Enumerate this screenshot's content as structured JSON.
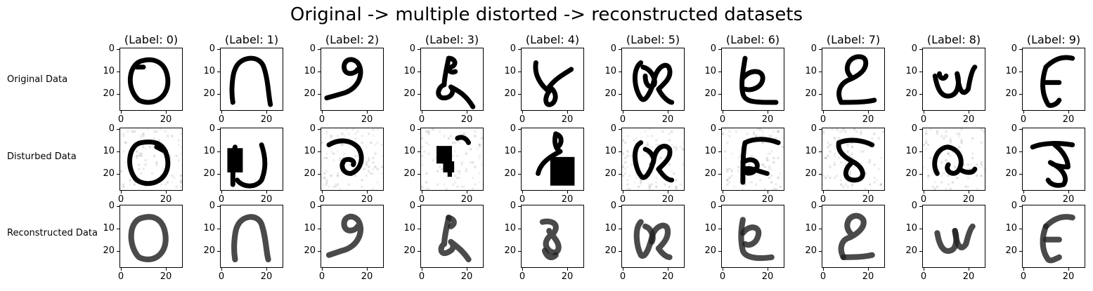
{
  "figure": {
    "title": "Original -> multiple distorted -> reconstructed datasets"
  },
  "row_labels": [
    "Original Data",
    "Disturbed Data",
    "Reconstructed Data"
  ],
  "column_titles": [
    "(Label: 0)",
    "(Label: 1)",
    "(Label: 2)",
    "(Label: 3)",
    "(Label: 4)",
    "(Label: 5)",
    "(Label: 6)",
    "(Label: 7)",
    "(Label: 8)",
    "(Label: 9)"
  ],
  "axes": {
    "yticks": [
      "0",
      "10",
      "20"
    ],
    "xticks": [
      "0",
      "20"
    ]
  },
  "chart_data": {
    "type": "heatmap",
    "title": "Original -> multiple distorted -> reconstructed datasets",
    "image_size": [
      28,
      28
    ],
    "colormap": "gray_r",
    "xlim": [
      -0.5,
      27.5
    ],
    "ylim": [
      27.5,
      -0.5
    ],
    "x_ticks": [
      0,
      20
    ],
    "y_ticks": [
      0,
      10,
      20
    ],
    "rows": [
      "Original Data",
      "Disturbed Data",
      "Reconstructed Data"
    ],
    "columns": [
      "(Label: 0)",
      "(Label: 1)",
      "(Label: 2)",
      "(Label: 3)",
      "(Label: 4)",
      "(Label: 5)",
      "(Label: 6)",
      "(Label: 7)",
      "(Label: 8)",
      "(Label: 9)"
    ],
    "labels": [
      0,
      1,
      2,
      3,
      4,
      5,
      6,
      7,
      8,
      9
    ]
  },
  "glyphs": {
    "original": [
      {
        "strokes": [
          "M10,5 C3,6 2,18 8,23 C14,26 22,22 21,13 C20,5 14,4 10,5 Z",
          "M7,8 L10,8"
        ],
        "blocks": []
      },
      {
        "strokes": [
          "M5,24 C4,18 5,11 6,9 C8,3 17,2 19,8 C21,14 21,20 22,25"
        ],
        "blocks": []
      },
      {
        "strokes": [
          "M2,22 L9,20 C17,18 19,10 16,6 C13,3 9,5 10,9 C11,12 15,11 16,9"
        ],
        "blocks": []
      },
      {
        "strokes": [
          "M12,4 C11,9 10,13 10,16 C7,17 6,22 10,22 C13,22 15,19 13,17 C17,19 20,21 23,26",
          "M12,4 C15,4 16,7 13,8 C11,9 13,11 15,10"
        ],
        "blocks": []
      },
      {
        "strokes": [
          "M6,6 C5,12 9,17 12,19 C9,23 11,27 14,24 C16,21 14,18 12,17 C15,13 19,11 22,9"
        ],
        "blocks": []
      },
      {
        "strokes": [
          "M8,6 C4,9 5,18 8,22 C10,25 13,18 14,14 C15,8 20,5 21,9 C22,13 18,16 16,18 C18,22 21,24 22,24",
          "M9,8 C13,9 15,14 14,16 C12,18 10,16 10,12"
        ],
        "blocks": []
      },
      {
        "strokes": [
          "M10,4 C9,10 8,16 9,20 C10,24 14,24 24,24",
          "M9,13 C12,9 18,9 18,13 C18,17 13,19 10,18"
        ],
        "blocks": []
      },
      {
        "strokes": [
          "M8,24 C13,24 19,24 23,23",
          "M8,24 C6,20 7,16 11,14 C16,12 20,9 19,5 C18,2 12,3 11,7 C10,10 12,12 13,13"
        ],
        "blocks": []
      },
      {
        "strokes": [
          "M5,12 C6,18 8,22 12,21 C16,20 16,14 15,11",
          "M15,11 C16,20 18,21 20,18 C21,12 22,9 23,8",
          "M7,11 C7,13 9,14 10,12"
        ],
        "blocks": []
      },
      {
        "strokes": [
          "M10,8 C8,14 8,20 11,25 C12,26 15,25 16,23",
          "M10,8 C14,4 18,3 22,4",
          "M10,15 L16,15"
        ],
        "blocks": []
      }
    ],
    "distorted": [
      {
        "strokes": [
          "M9,6 C3,7 2,18 7,23 C13,27 22,23 21,14 C20,6 15,5 9,6 Z",
          "M16,8 L20,10"
        ],
        "blocks": [],
        "noise": true
      },
      {
        "strokes": [
          "M5,25 C5,18 5,11 6,8",
          "M18,7 C20,13 20,18 18,23 C15,27 9,26 7,23"
        ],
        "blocks": [
          [
            3,
            9,
            7,
            11
          ]
        ],
        "noise": false
      },
      {
        "strokes": [
          "M3,7 C8,4 13,5 16,8 C19,12 18,18 13,20 C9,20 8,16 10,14 C12,13 15,14 14,16"
        ],
        "blocks": [],
        "noise": true
      },
      {
        "strokes": [
          "M16,4 C18,3 20,4 21,6"
        ],
        "blocks": [
          [
            7,
            8,
            7,
            8
          ],
          [
            10,
            15,
            5,
            5
          ],
          [
            12,
            18,
            2,
            4
          ]
        ],
        "noise": true
      },
      {
        "strokes": [
          "M15,2 C14,6 15,9 17,10 C13,12 8,15 7,20",
          "M15,2 C18,3 18,6 16,8"
        ],
        "blocks": [
          [
            13,
            13,
            11,
            13
          ]
        ],
        "noise": false
      },
      {
        "strokes": [
          "M8,6 C4,8 5,17 8,21 C10,24 13,18 14,13",
          "M14,13 C15,8 19,6 21,9 C22,13 18,16 16,18 C18,21 20,23 22,23",
          "M10,9 C13,10 15,14 13,16"
        ],
        "blocks": [],
        "noise": true
      },
      {
        "strokes": [
          "M9,24 C9,18 9,10 10,6 C14,4 20,4 25,6",
          "M9,15 C13,12 17,15 15,18 C13,21 9,20 10,18 C12,17 16,19 20,20"
        ],
        "blocks": [],
        "noise": true
      },
      {
        "strokes": [
          "M7,6 C12,4 18,5 22,7",
          "M7,6 C6,10 10,13 14,15 C19,18 19,23 14,23 C9,23 9,18 13,15"
        ],
        "blocks": [],
        "noise": true
      },
      {
        "strokes": [
          "M6,20 C3,15 6,8 11,8 C16,9 18,14 16,18 C14,22 9,19 11,16",
          "M16,18 C19,20 22,20 23,18"
        ],
        "blocks": [],
        "noise": true
      },
      {
        "strokes": [
          "M4,8 C9,6 16,6 22,7",
          "M14,7 C18,10 20,14 20,17 C16,17 13,16 12,15 C18,18 20,22 18,25 C15,26 12,25 11,23"
        ],
        "blocks": [],
        "noise": false
      }
    ],
    "reconstructed": [
      {
        "strokes": [
          "M10,5 C3,6 3,18 8,23 C14,26 21,22 20,13 C19,5 14,4 10,5 Z"
        ],
        "blocks": [],
        "blur": true
      },
      {
        "strokes": [
          "M6,24 C5,18 6,11 7,9 C9,4 16,3 18,8 C20,14 20,20 21,24"
        ],
        "blocks": [],
        "blur": true
      },
      {
        "strokes": [
          "M3,22 L9,20 C17,18 19,10 16,6 C13,3 9,5 10,9 C11,12 15,11 16,9"
        ],
        "blocks": [],
        "blur": true
      },
      {
        "strokes": [
          "M12,5 C11,10 10,14 10,17 C8,18 8,22 11,21 C14,20 15,18 13,16 C17,19 19,21 21,24",
          "M12,5 C15,6 15,8 13,9"
        ],
        "blocks": [],
        "blur": true
      },
      {
        "strokes": [
          "M9,7 C13,6 17,8 14,12 C11,14 9,17 12,20 C15,22 17,20 16,17 C15,14 12,12 12,11",
          "M10,20 C11,23 13,24 15,22"
        ],
        "blocks": [],
        "blur": true
      },
      {
        "strokes": [
          "M8,7 C5,10 6,18 8,22 C10,24 12,18 13,14 C14,9 19,7 20,10 C21,14 18,17 16,19 C18,22 20,23 21,23",
          "M10,9 C13,10 14,14 13,16"
        ],
        "blocks": [],
        "blur": true
      },
      {
        "strokes": [
          "M9,6 C8,11 8,16 9,20 C10,23 15,24 22,23",
          "M9,12 C12,8 17,9 16,13 C15,17 12,18 10,17"
        ],
        "blocks": [],
        "blur": true
      },
      {
        "strokes": [
          "M9,23 C13,23 18,23 22,22",
          "M9,23 C7,19 8,15 12,14 C16,12 19,9 18,6 C16,3 12,4 11,7 C10,10 12,12 13,13"
        ],
        "blocks": [],
        "blur": true
      },
      {
        "strokes": [
          "M6,12 C7,18 9,21 12,20 C15,19 15,14 14,11",
          "M14,11 C15,19 17,20 19,17 C20,13 21,10 22,9"
        ],
        "blocks": [],
        "blur": true
      },
      {
        "strokes": [
          "M10,9 C8,14 8,20 11,24 C12,25 14,24 16,23",
          "M10,9 C14,5 18,4 22,5",
          "M10,15 L16,15"
        ],
        "blocks": [],
        "blur": true
      }
    ]
  }
}
